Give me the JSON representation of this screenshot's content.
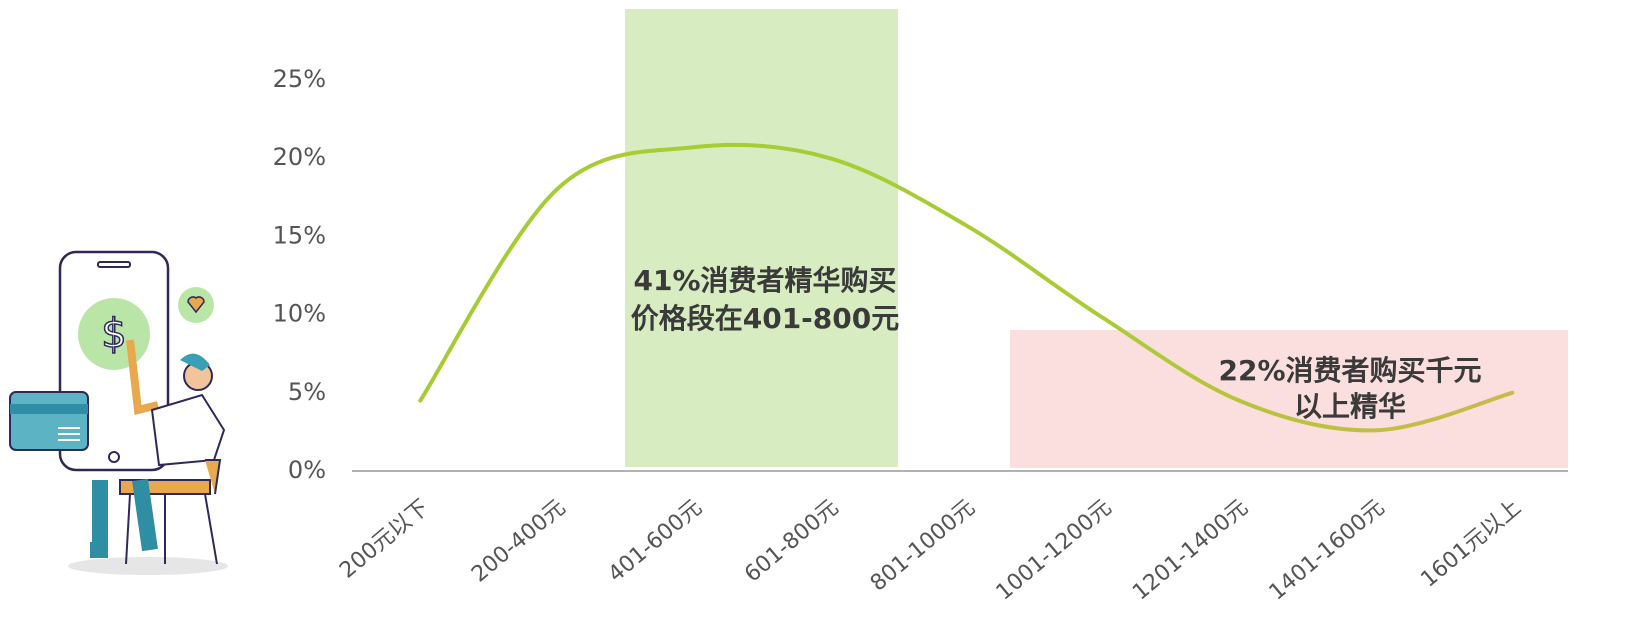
{
  "chart_data": {
    "type": "line",
    "categories": [
      "200元以下",
      "200-400元",
      "401-600元",
      "601-800元",
      "801-1000元",
      "1001-1200元",
      "1201-1400元",
      "1401-1600元",
      "1601元以上"
    ],
    "series": [
      {
        "name": null,
        "color": "#a6cc33",
        "values": [
          4.5,
          18,
          20.7,
          20,
          15.7,
          9.8,
          4.5,
          2.6,
          5
        ]
      }
    ],
    "ylim": [
      0,
      25
    ],
    "yticks": [
      {
        "value": 0,
        "label": "0%"
      },
      {
        "value": 5,
        "label": "5%"
      },
      {
        "value": 10,
        "label": "10%"
      },
      {
        "value": 15,
        "label": "15%"
      },
      {
        "value": 20,
        "label": "20%"
      },
      {
        "value": 25,
        "label": "25%"
      }
    ],
    "annotations": [
      [
        "41%消费者精华购买",
        "价格段在401-800元"
      ],
      [
        "22%消费者购买千元",
        "以上精华"
      ]
    ]
  }
}
